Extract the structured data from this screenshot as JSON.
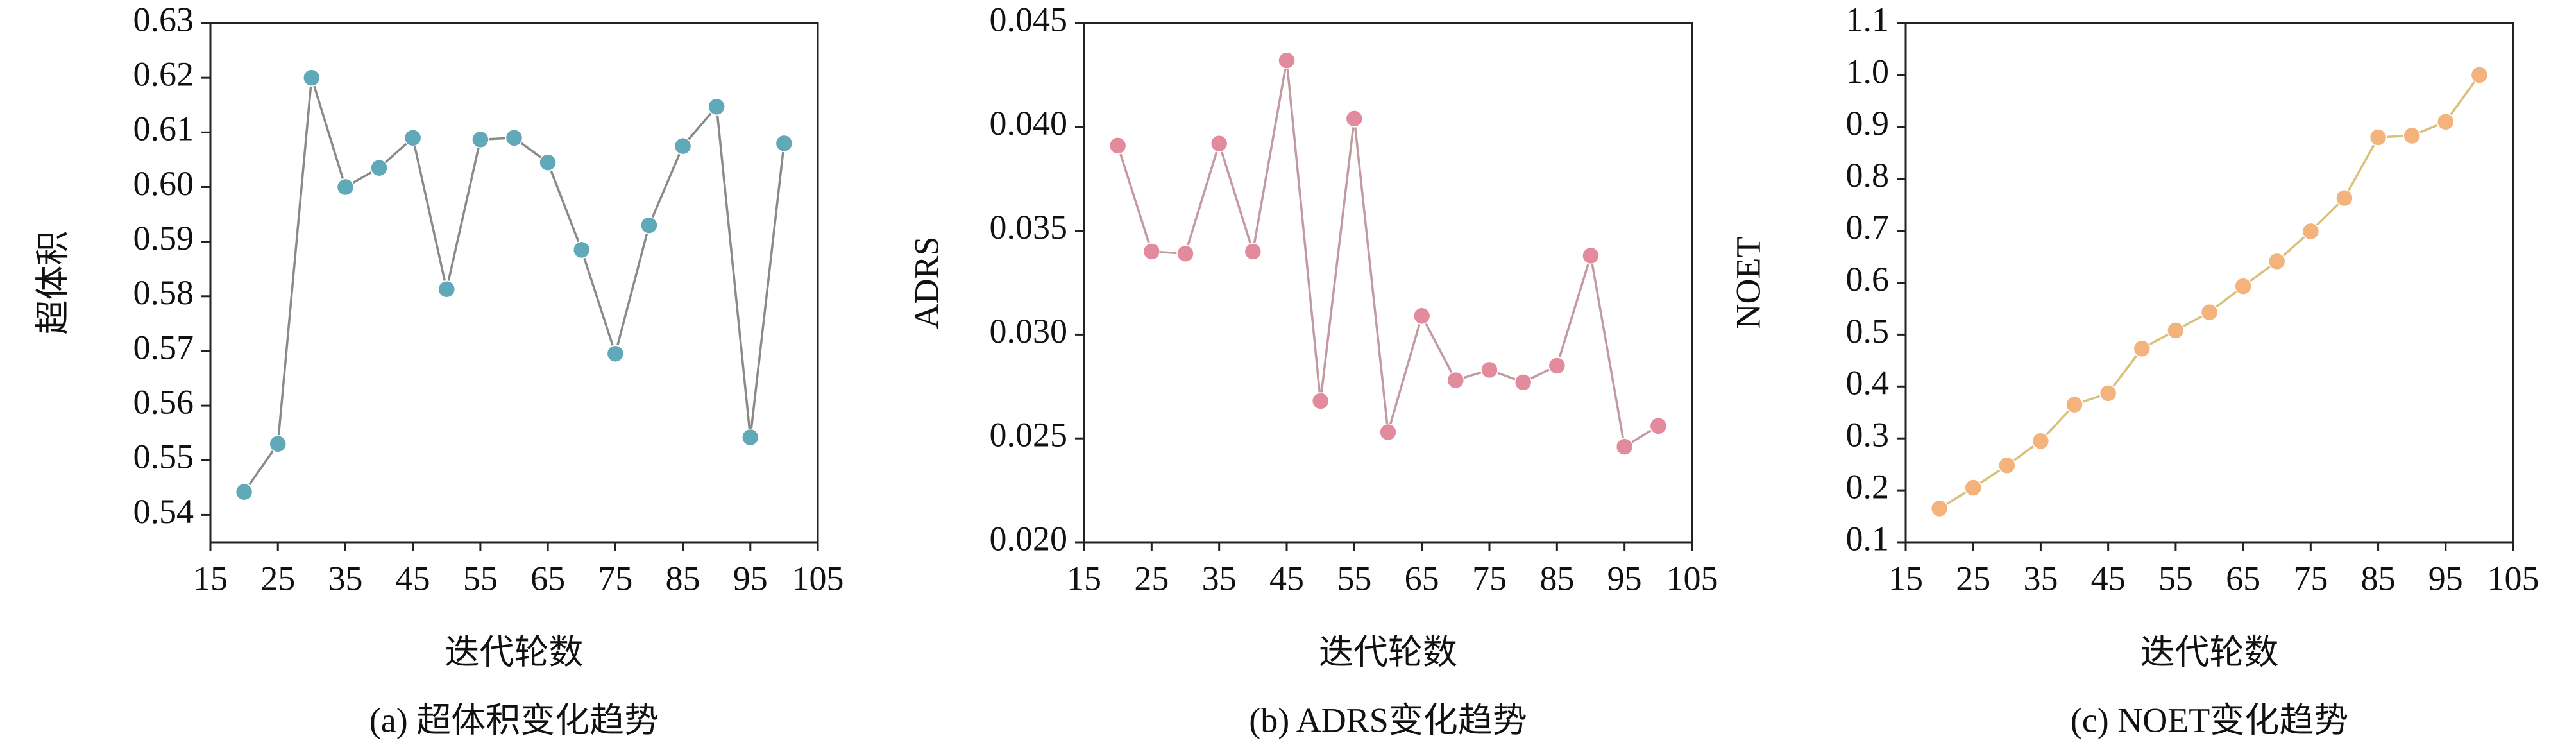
{
  "chart_data": [
    {
      "type": "line",
      "caption": "(a) 超体积变化趋势",
      "xlabel": "迭代轮数",
      "ylabel": "超体积",
      "x": [
        20,
        25,
        30,
        35,
        40,
        45,
        50,
        55,
        60,
        65,
        70,
        75,
        80,
        85,
        90,
        95,
        100
      ],
      "values": [
        0.5442,
        0.553,
        0.62,
        0.6,
        0.6035,
        0.609,
        0.5813,
        0.6087,
        0.609,
        0.6045,
        0.5885,
        0.5695,
        0.593,
        0.6075,
        0.6147,
        0.5542,
        0.608
      ],
      "color": "#5fa9b9",
      "line_color": "#8a8a8a",
      "xlim": [
        15,
        105
      ],
      "xticks": [
        15,
        25,
        35,
        45,
        55,
        65,
        75,
        85,
        95,
        105
      ],
      "ylim": [
        0.535,
        0.63
      ],
      "yticks": [
        0.54,
        0.55,
        0.56,
        0.57,
        0.58,
        0.59,
        {
          "value": 0.6,
          "label": "0.60"
        },
        0.61,
        0.62,
        0.63
      ]
    },
    {
      "type": "line",
      "caption": "(b) ADRS变化趋势",
      "xlabel": "迭代轮数",
      "ylabel": "ADRS",
      "x": [
        20,
        25,
        30,
        35,
        40,
        45,
        50,
        55,
        60,
        65,
        70,
        75,
        80,
        85,
        90,
        95,
        100
      ],
      "values": [
        0.0391,
        0.034,
        0.0339,
        0.0392,
        0.034,
        0.0432,
        0.0268,
        0.0404,
        0.0253,
        0.0309,
        0.0278,
        0.0283,
        0.0277,
        0.0285,
        0.0338,
        0.0246,
        0.0256
      ],
      "color": "#e28b9c",
      "line_color": "#c29aa2",
      "xlim": [
        15,
        105
      ],
      "xticks": [
        15,
        25,
        35,
        45,
        55,
        65,
        75,
        85,
        95,
        105
      ],
      "ylim": [
        0.02,
        0.045
      ],
      "yticks": [
        {
          "value": 0.02,
          "label": "0.020"
        },
        0.025,
        {
          "value": 0.03,
          "label": "0.030"
        },
        0.035,
        {
          "value": 0.04,
          "label": "0.040"
        },
        0.045
      ]
    },
    {
      "type": "line",
      "caption": "(c) NOET变化趋势",
      "xlabel": "迭代轮数",
      "ylabel": "NOET",
      "x": [
        20,
        25,
        30,
        35,
        40,
        45,
        50,
        55,
        60,
        65,
        70,
        75,
        80,
        85,
        90,
        95,
        100
      ],
      "values": [
        0.165,
        0.205,
        0.248,
        0.295,
        0.365,
        0.387,
        0.473,
        0.508,
        0.543,
        0.593,
        0.641,
        0.699,
        0.763,
        0.88,
        0.883,
        0.91,
        1.0
      ],
      "color": "#f4b27c",
      "line_color": "#d6c27a",
      "xlim": [
        15,
        105
      ],
      "xticks": [
        15,
        25,
        35,
        45,
        55,
        65,
        75,
        85,
        95,
        105
      ],
      "ylim": [
        0.1,
        1.1
      ],
      "yticks": [
        0.1,
        0.2,
        0.3,
        0.4,
        0.5,
        0.6,
        0.7,
        0.8,
        0.9,
        {
          "value": 1,
          "label": "1.0"
        },
        1.1
      ]
    }
  ]
}
